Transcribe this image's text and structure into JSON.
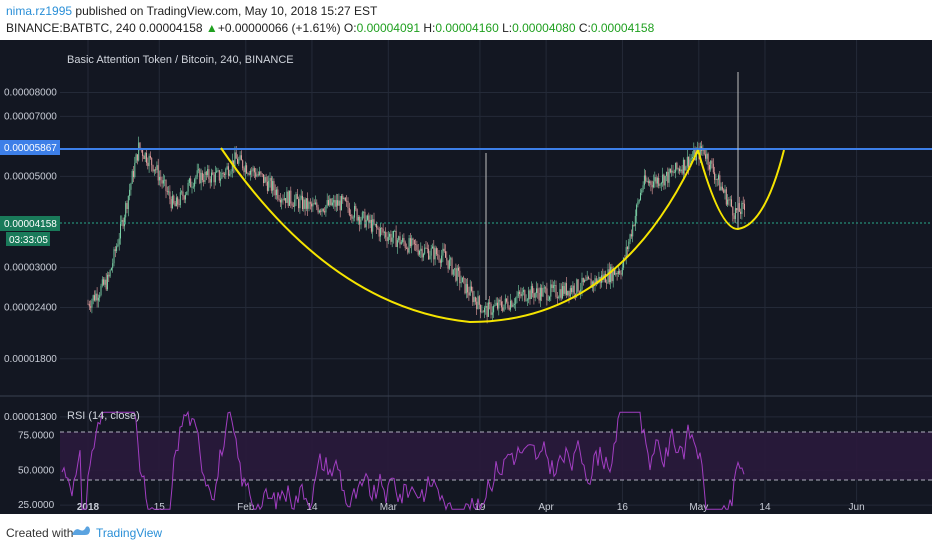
{
  "header": {
    "author": "nima.rz1995",
    "published_text": "published on TradingView.com, May 10, 2018 15:27 EST",
    "symbol": "BINANCE:BATBTC, 240",
    "price": "0.00004158",
    "change_symbol": "▲",
    "change": "+0.00000066 (+1.61%)",
    "o_label": "O:",
    "o_value": "0.00004091",
    "h_label": "H:",
    "h_value": "0.00004160",
    "l_label": "L:",
    "l_value": "0.00004080",
    "c_label": "C:",
    "c_value": "0.00004158"
  },
  "colors": {
    "background": "#131722",
    "grid": "#242a38",
    "resistance_line": "#3d7fe8",
    "cup_curve": "#f5e400",
    "rsi_line": "#a23ec2",
    "rsi_band": "#2a1a3c",
    "up_candle": "#7ad0a6",
    "down_candle": "#e8a0a0",
    "price_label_bg": "#1a7a5a"
  },
  "footer": {
    "created_with": "Created with",
    "brand": "TradingView"
  },
  "chart_data": [
    {
      "type": "candlestick",
      "title": "Basic Attention Token / Bitcoin, 240, BINANCE",
      "y_scale": "log",
      "y_ticks": [
        "0.00008000",
        "0.00007000",
        "0.00005000",
        "0.00003000",
        "0.00002400",
        "0.00001800",
        "0.00001300"
      ],
      "x_ticks": [
        "2018",
        "15",
        "Feb",
        "14",
        "Mar",
        "19",
        "Apr",
        "16",
        "May",
        "14",
        "Jun"
      ],
      "resistance_level": "0.00005867",
      "current_price": "0.00004158",
      "countdown": "03:33:05",
      "approx_close_path": [
        [
          "2018-01-01",
          2.45e-05
        ],
        [
          "2018-01-05",
          2.8e-05
        ],
        [
          "2018-01-08",
          4e-05
        ],
        [
          "2018-01-11",
          5.9e-05
        ],
        [
          "2018-01-14",
          5.3e-05
        ],
        [
          "2018-01-18",
          4.2e-05
        ],
        [
          "2018-01-22",
          5e-05
        ],
        [
          "2018-01-27",
          5e-05
        ],
        [
          "2018-01-30",
          5.5e-05
        ],
        [
          "2018-02-03",
          5.1e-05
        ],
        [
          "2018-02-08",
          4.5e-05
        ],
        [
          "2018-02-14",
          4.2e-05
        ],
        [
          "2018-02-20",
          4.3e-05
        ],
        [
          "2018-02-27",
          3.7e-05
        ],
        [
          "2018-03-05",
          3.4e-05
        ],
        [
          "2018-03-12",
          3.2e-05
        ],
        [
          "2018-03-16",
          2.7e-05
        ],
        [
          "2018-03-20",
          2.35e-05
        ],
        [
          "2018-03-24",
          2.45e-05
        ],
        [
          "2018-03-28",
          2.6e-05
        ],
        [
          "2018-04-03",
          2.62e-05
        ],
        [
          "2018-04-10",
          2.75e-05
        ],
        [
          "2018-04-16",
          3e-05
        ],
        [
          "2018-04-20",
          4.8e-05
        ],
        [
          "2018-04-25",
          5e-05
        ],
        [
          "2018-04-30",
          5.6e-05
        ],
        [
          "2018-05-02",
          5.8e-05
        ],
        [
          "2018-05-05",
          4.8e-05
        ],
        [
          "2018-05-08",
          4.1e-05
        ],
        [
          "2018-05-10",
          4.16e-05
        ]
      ]
    },
    {
      "type": "line",
      "title": "RSI (14, close)",
      "y_ticks": [
        "75.0000",
        "50.0000",
        "25.0000"
      ],
      "band": [
        30,
        70
      ],
      "ylim": [
        20,
        95
      ]
    }
  ]
}
